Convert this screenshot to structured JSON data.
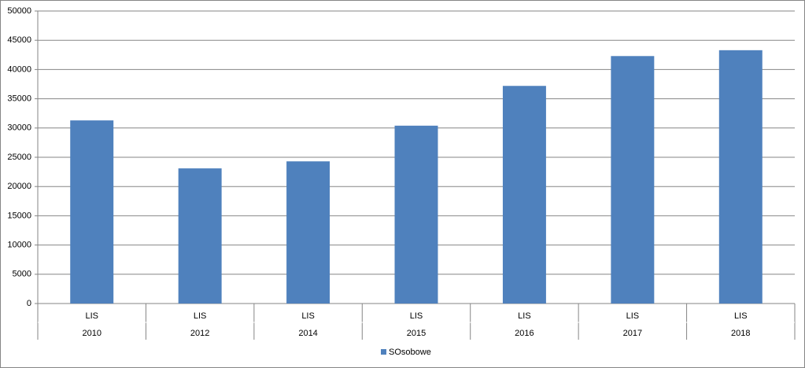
{
  "chart_data": {
    "type": "bar",
    "categories": [
      [
        "LIS",
        "2010"
      ],
      [
        "LIS",
        "2012"
      ],
      [
        "LIS",
        "2014"
      ],
      [
        "LIS",
        "2015"
      ],
      [
        "LIS",
        "2016"
      ],
      [
        "LIS",
        "2017"
      ],
      [
        "LIS",
        "2018"
      ]
    ],
    "series": [
      {
        "name": "SOsobowe",
        "color": "#4f81bd",
        "values": [
          31300,
          23100,
          24300,
          30400,
          37200,
          42300,
          43300
        ]
      }
    ],
    "ylim": [
      0,
      50000
    ],
    "yticks": [
      0,
      5000,
      10000,
      15000,
      20000,
      25000,
      30000,
      35000,
      40000,
      45000,
      50000
    ],
    "grid": true,
    "legend": "bottom"
  }
}
